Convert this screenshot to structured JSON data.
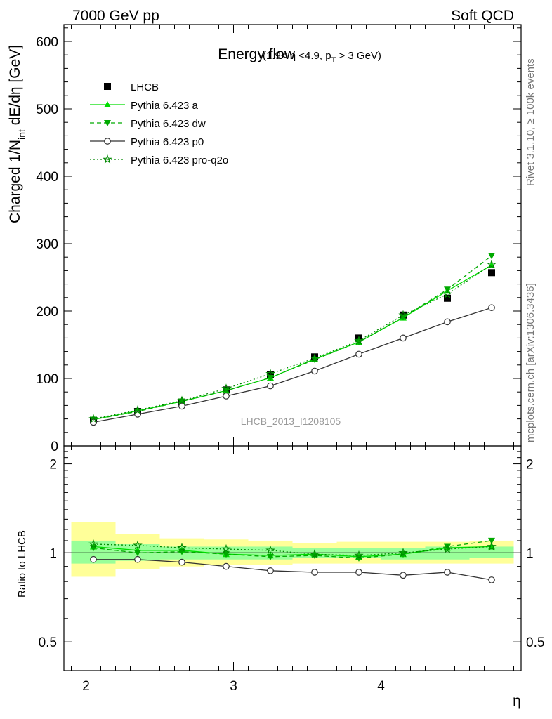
{
  "header": {
    "left": "7000 GeV pp",
    "right": "Soft QCD"
  },
  "side_labels": {
    "rivet": "Rivet 3.1.10, ≥ 100k events",
    "mcplots": "mcplots.cern.ch [arXiv:1306.3436]"
  },
  "watermark": "LHCB_2013_I1208105",
  "chart_data": [
    {
      "type": "line",
      "panel": "main",
      "title": "Energy flow",
      "title_detail": "(1.9< η <4.9, p",
      "title_detail_sub": "T",
      "title_detail_end": " > 3 GeV)",
      "ylabel": "Charged 1/N",
      "ylabel_sub": "int",
      "ylabel_end": " dE/dη [GeV]",
      "xlabel": "η",
      "xlim": [
        1.85,
        4.95
      ],
      "ylim": [
        0,
        625
      ],
      "yticks": [
        0,
        100,
        200,
        300,
        400,
        500,
        600
      ],
      "ytick_labels": [
        "0",
        "100",
        "200",
        "300",
        "400",
        "500",
        "600"
      ],
      "x": [
        2.05,
        2.35,
        2.65,
        2.95,
        3.25,
        3.55,
        3.85,
        4.15,
        4.45,
        4.75
      ],
      "series": [
        {
          "name": "LHCB",
          "color": "#000000",
          "marker": "square",
          "line": "none",
          "values": [
            38,
            51,
            65,
            83,
            106,
            132,
            160,
            194,
            219,
            257
          ]
        },
        {
          "name": "Pythia 6.423 a",
          "color": "#00dd00",
          "marker": "triangle-up",
          "line": "solid",
          "values": [
            39,
            52,
            66,
            82,
            101,
            129,
            154,
            190,
            230,
            268
          ]
        },
        {
          "name": "Pythia 6.423 dw",
          "color": "#00aa00",
          "marker": "triangle-down",
          "line": "dashed",
          "values": [
            39,
            51,
            66,
            82,
            101,
            128,
            154,
            191,
            232,
            282
          ]
        },
        {
          "name": "Pythia 6.423 p0",
          "color": "#333333",
          "marker": "circle-open",
          "line": "solid",
          "values": [
            35,
            47,
            59,
            74,
            89,
            111,
            136,
            160,
            184,
            205
          ]
        },
        {
          "name": "Pythia 6.423 pro-q2o",
          "color": "#008800",
          "marker": "star-open",
          "line": "dotted",
          "values": [
            40,
            53,
            67,
            85,
            107,
            130,
            156,
            194,
            225,
            269
          ]
        }
      ]
    },
    {
      "type": "line",
      "panel": "ratio",
      "ylabel": "Ratio to LHCB",
      "xlabel": "η",
      "xlim": [
        1.85,
        4.95
      ],
      "ylim": [
        0.4,
        2.3
      ],
      "yticks": [
        0.5,
        1,
        2
      ],
      "ytick_labels": [
        "0.5",
        "1",
        "2"
      ],
      "xticks": [
        2,
        3,
        4
      ],
      "xtick_labels": [
        "2",
        "3",
        "4"
      ],
      "bands": {
        "x_edges": [
          1.9,
          2.2,
          2.5,
          2.8,
          3.1,
          3.4,
          3.7,
          4.0,
          4.3,
          4.6,
          4.9
        ],
        "yellow_low": [
          0.83,
          0.88,
          0.9,
          0.91,
          0.91,
          0.92,
          0.92,
          0.92,
          0.92,
          0.92
        ],
        "yellow_high": [
          1.27,
          1.16,
          1.12,
          1.11,
          1.1,
          1.08,
          1.09,
          1.09,
          1.09,
          1.1
        ],
        "green_low": [
          0.92,
          0.94,
          0.95,
          0.95,
          0.95,
          0.96,
          0.96,
          0.95,
          0.95,
          0.96
        ],
        "green_high": [
          1.1,
          1.07,
          1.05,
          1.05,
          1.05,
          1.04,
          1.04,
          1.04,
          1.05,
          1.05
        ]
      },
      "series": [
        {
          "name": "Pythia 6.423 a",
          "values": [
            1.05,
            1.02,
            1.02,
            0.99,
            0.98,
            0.99,
            0.97,
            0.99,
            1.04,
            1.05
          ]
        },
        {
          "name": "Pythia 6.423 dw",
          "values": [
            1.04,
            1.0,
            1.01,
            0.99,
            0.97,
            0.98,
            0.96,
            0.99,
            1.05,
            1.1
          ]
        },
        {
          "name": "Pythia 6.423 p0",
          "values": [
            0.95,
            0.95,
            0.93,
            0.9,
            0.87,
            0.86,
            0.86,
            0.84,
            0.86,
            0.81
          ]
        },
        {
          "name": "Pythia 6.423 pro-q2o",
          "values": [
            1.07,
            1.06,
            1.04,
            1.03,
            1.02,
            0.99,
            0.98,
            1.0,
            1.03,
            1.05
          ]
        }
      ]
    }
  ]
}
